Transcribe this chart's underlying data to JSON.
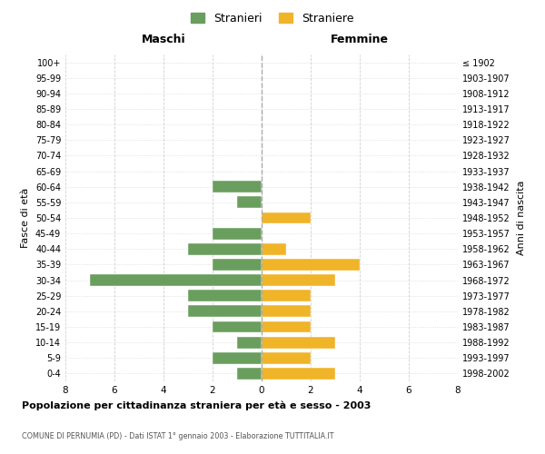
{
  "age_groups": [
    "0-4",
    "5-9",
    "10-14",
    "15-19",
    "20-24",
    "25-29",
    "30-34",
    "35-39",
    "40-44",
    "45-49",
    "50-54",
    "55-59",
    "60-64",
    "65-69",
    "70-74",
    "75-79",
    "80-84",
    "85-89",
    "90-94",
    "95-99",
    "100+"
  ],
  "birth_years": [
    "1998-2002",
    "1993-1997",
    "1988-1992",
    "1983-1987",
    "1978-1982",
    "1973-1977",
    "1968-1972",
    "1963-1967",
    "1958-1962",
    "1953-1957",
    "1948-1952",
    "1943-1947",
    "1938-1942",
    "1933-1937",
    "1928-1932",
    "1923-1927",
    "1918-1922",
    "1913-1917",
    "1908-1912",
    "1903-1907",
    "≤ 1902"
  ],
  "maschi": [
    1,
    2,
    1,
    2,
    3,
    3,
    7,
    2,
    3,
    2,
    0,
    1,
    2,
    0,
    0,
    0,
    0,
    0,
    0,
    0,
    0
  ],
  "femmine": [
    3,
    2,
    3,
    2,
    2,
    2,
    3,
    4,
    1,
    0,
    2,
    0,
    0,
    0,
    0,
    0,
    0,
    0,
    0,
    0,
    0
  ],
  "color_maschi": "#6a9e5e",
  "color_femmine": "#f0b429",
  "title": "Popolazione per cittadinanza straniera per età e sesso - 2003",
  "subtitle": "COMUNE DI PERNUMIA (PD) - Dati ISTAT 1° gennaio 2003 - Elaborazione TUTTITALIA.IT",
  "label_maschi": "Stranieri",
  "label_femmine": "Straniere",
  "xlabel_left": "Maschi",
  "xlabel_right": "Femmine",
  "ylabel_left": "Fasce di età",
  "ylabel_right": "Anni di nascita",
  "xlim": 8,
  "bg_color": "#ffffff",
  "grid_color": "#d0d0d0",
  "bar_color_border": "#ffffff"
}
